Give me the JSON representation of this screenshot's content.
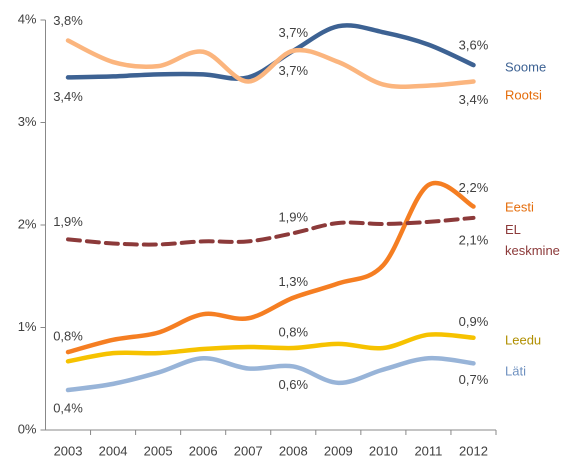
{
  "chart_data": {
    "type": "line",
    "categories": [
      "2003",
      "2004",
      "2005",
      "2006",
      "2007",
      "2008",
      "2009",
      "2010",
      "2011",
      "2012"
    ],
    "ylim": [
      0,
      4
    ],
    "yticks": [
      {
        "value": 0,
        "label": "0%"
      },
      {
        "value": 1,
        "label": "1%"
      },
      {
        "value": 2,
        "label": "2%"
      },
      {
        "value": 3,
        "label": "3%"
      },
      {
        "value": 4,
        "label": "4%"
      }
    ],
    "grid": false,
    "legend": "right",
    "series": [
      {
        "name": "Soome",
        "color": "#3d6293",
        "dashed": false,
        "values": [
          3.44,
          3.45,
          3.47,
          3.47,
          3.44,
          3.7,
          3.94,
          3.88,
          3.76,
          3.56
        ],
        "value_labels": [
          "3,4%",
          null,
          null,
          null,
          null,
          "3,7%",
          null,
          null,
          null,
          "3,6%"
        ]
      },
      {
        "name": "Rootsi",
        "color": "#fbb57e",
        "dashed": false,
        "values": [
          3.8,
          3.59,
          3.55,
          3.69,
          3.4,
          3.7,
          3.59,
          3.37,
          3.36,
          3.4
        ],
        "value_labels": [
          "3,8%",
          null,
          null,
          null,
          null,
          "3,7%",
          null,
          null,
          null,
          "3,4%"
        ]
      },
      {
        "name": "Eesti",
        "color": "#f57e22",
        "dashed": false,
        "values": [
          0.76,
          0.88,
          0.95,
          1.13,
          1.09,
          1.29,
          1.43,
          1.61,
          2.39,
          2.18
        ],
        "value_labels": [
          "0,8%",
          null,
          null,
          null,
          null,
          "1,3%",
          null,
          null,
          null,
          "2,2%"
        ]
      },
      {
        "name": "EL keskmine",
        "color": "#8c3a3a",
        "dashed": true,
        "values": [
          1.86,
          1.82,
          1.81,
          1.84,
          1.84,
          1.92,
          2.02,
          2.01,
          2.03,
          2.07
        ],
        "value_labels": [
          "1,9%",
          null,
          null,
          null,
          null,
          "1,9%",
          null,
          null,
          null,
          "2,1%"
        ]
      },
      {
        "name": "Leedu",
        "color": "#f6c200",
        "dashed": false,
        "values": [
          0.67,
          0.75,
          0.75,
          0.79,
          0.81,
          0.8,
          0.84,
          0.8,
          0.93,
          0.9
        ],
        "value_labels": [
          null,
          null,
          null,
          null,
          null,
          "0,8%",
          null,
          null,
          null,
          "0,9%"
        ]
      },
      {
        "name": "Läti",
        "color": "#98b4d8",
        "dashed": false,
        "values": [
          0.39,
          0.45,
          0.56,
          0.7,
          0.6,
          0.62,
          0.46,
          0.59,
          0.7,
          0.65
        ],
        "value_labels": [
          "0,4%",
          null,
          null,
          null,
          null,
          "0,6%",
          null,
          null,
          null,
          "0,7%"
        ]
      }
    ]
  }
}
